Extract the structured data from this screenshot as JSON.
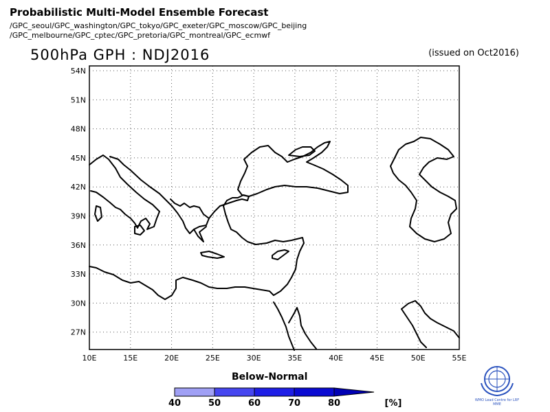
{
  "header": {
    "title": "Probabilistic Multi-Model Ensemble Forecast",
    "models_line1": "/GPC_seoul/GPC_washington/GPC_tokyo/GPC_exeter/GPC_moscow/GPC_beijing",
    "models_line2": "/GPC_melbourne/GPC_cptec/GPC_pretoria/GPC_montreal/GPC_ecmwf",
    "map_title": "500hPa GPH : NDJ2016",
    "issued": "(issued on Oct2016)"
  },
  "map": {
    "lat_labels": [
      "54N",
      "51N",
      "48N",
      "45N",
      "42N",
      "39N",
      "36N",
      "33N",
      "30N",
      "27N"
    ],
    "lon_labels": [
      "10E",
      "15E",
      "20E",
      "25E",
      "30E",
      "35E",
      "40E",
      "45E",
      "50E",
      "55E"
    ],
    "grid": true,
    "coastline_color": "#000000",
    "region": "Mediterranean - Black Sea - Caspian Sea"
  },
  "colorbar": {
    "title": "Below-Normal",
    "ticks": [
      "40",
      "50",
      "60",
      "70",
      "80"
    ],
    "unit": "[%]",
    "colors": [
      "#a0a0f5",
      "#4646f0",
      "#1e1ee6",
      "#0a0ad2",
      "#0000b4"
    ]
  },
  "logo": {
    "text": "WMO Lead Centre for LRF MME",
    "icon": "wmo-logo-icon",
    "color": "#2a52be"
  }
}
